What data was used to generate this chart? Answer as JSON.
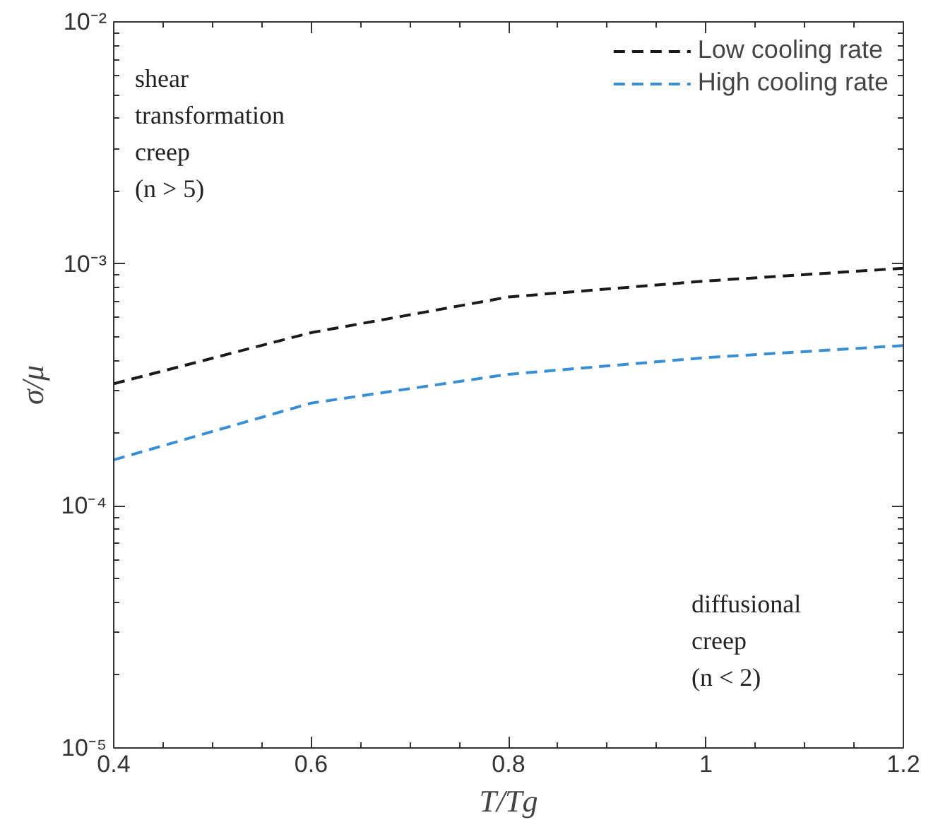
{
  "chart_data": {
    "type": "line",
    "xlabel": "T/Tg",
    "ylabel": "σ/μ",
    "x": [
      0.4,
      0.6,
      0.8,
      1.0,
      1.2
    ],
    "series": [
      {
        "name": "Low cooling rate",
        "color": "#1a1a1a",
        "values": [
          0.00032,
          0.00052,
          0.00073,
          0.00085,
          0.00096
        ]
      },
      {
        "name": "High cooling rate",
        "color": "#3a8fd4",
        "values": [
          0.000155,
          0.000266,
          0.00035,
          0.00041,
          0.00046
        ]
      }
    ],
    "log": "y",
    "xlim": [
      0.4,
      1.2
    ],
    "ylim": [
      1e-05,
      0.01
    ],
    "xticks": [
      0.4,
      0.6,
      0.8,
      1,
      1.2
    ],
    "yticks": [
      {
        "value": 1e-05,
        "label": "10⁻⁵"
      },
      {
        "value": 0.0001,
        "label": "10⁻⁴"
      },
      {
        "value": 0.001,
        "label": "10⁻³"
      },
      {
        "value": 0.01,
        "label": "10⁻²"
      }
    ],
    "grid": false,
    "legend": "top right",
    "line_style": "dashed",
    "marker": "none",
    "annotations": [
      "shear\ntransformation\ncreep\n(n > 5)",
      "diffusional\ncreep\n(n < 2)"
    ]
  }
}
